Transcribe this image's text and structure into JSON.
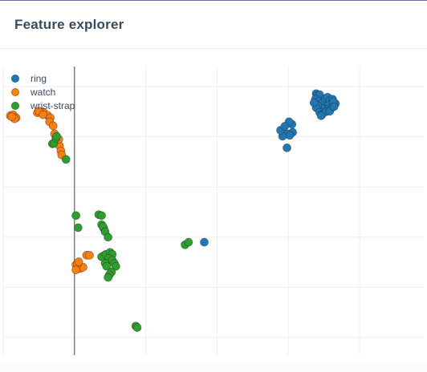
{
  "card": {
    "title": "Feature explorer"
  },
  "chart_data": {
    "type": "scatter",
    "title": "Feature explorer",
    "xlabel": "",
    "ylabel": "",
    "xlim": [
      -1.0,
      4.9
    ],
    "ylim": [
      -0.35,
      5.4
    ],
    "grid": true,
    "legend_position": "top-left",
    "series": [
      {
        "name": "ring",
        "color": "#1f77b4",
        "points": [
          [
            3.39,
            4.86
          ],
          [
            3.41,
            4.82
          ],
          [
            3.44,
            4.84
          ],
          [
            3.38,
            4.75
          ],
          [
            3.43,
            4.71
          ],
          [
            3.48,
            4.68
          ],
          [
            3.52,
            4.76
          ],
          [
            3.55,
            4.79
          ],
          [
            3.58,
            4.72
          ],
          [
            3.62,
            4.75
          ],
          [
            3.56,
            4.62
          ],
          [
            3.61,
            4.58
          ],
          [
            3.66,
            4.66
          ],
          [
            3.63,
            4.7
          ],
          [
            3.52,
            4.55
          ],
          [
            3.47,
            4.57
          ],
          [
            3.41,
            4.62
          ],
          [
            3.39,
            4.58
          ],
          [
            3.44,
            4.49
          ],
          [
            3.47,
            4.44
          ],
          [
            3.53,
            4.5
          ],
          [
            3.58,
            4.51
          ],
          [
            3.64,
            4.6
          ],
          [
            3.46,
            4.42
          ],
          [
            3.36,
            4.68
          ],
          [
            3.05,
            4.25
          ],
          [
            3.01,
            4.3
          ],
          [
            3.06,
            4.09
          ],
          [
            2.98,
            4.06
          ],
          [
            3.02,
            4.03
          ],
          [
            2.92,
            4.01
          ],
          [
            2.89,
            4.13
          ],
          [
            2.95,
            4.21
          ],
          [
            2.98,
            3.78
          ],
          [
            1.82,
            1.9
          ]
        ]
      },
      {
        "name": "watch",
        "color": "#ff7f0e",
        "points": [
          [
            -0.9,
            4.42
          ],
          [
            -0.86,
            4.44
          ],
          [
            -0.82,
            4.38
          ],
          [
            -0.84,
            4.36
          ],
          [
            -0.88,
            4.4
          ],
          [
            -0.52,
            4.48
          ],
          [
            -0.47,
            4.5
          ],
          [
            -0.43,
            4.48
          ],
          [
            -0.38,
            4.43
          ],
          [
            -0.34,
            4.38
          ],
          [
            -0.5,
            4.51
          ],
          [
            -0.44,
            4.44
          ],
          [
            -0.35,
            4.3
          ],
          [
            -0.3,
            4.22
          ],
          [
            -0.28,
            4.06
          ],
          [
            -0.26,
            3.96
          ],
          [
            -0.21,
            3.82
          ],
          [
            -0.19,
            3.72
          ],
          [
            -0.18,
            3.64
          ],
          [
            -0.22,
            3.95
          ],
          [
            0.02,
            1.45
          ],
          [
            0.06,
            1.41
          ],
          [
            0.08,
            1.38
          ],
          [
            0.12,
            1.4
          ],
          [
            0.04,
            1.47
          ],
          [
            0.02,
            1.35
          ],
          [
            0.06,
            1.51
          ],
          [
            0.17,
            1.64
          ],
          [
            0.21,
            1.64
          ]
        ]
      },
      {
        "name": "wrist-strap",
        "color": "#2ca02c",
        "points": [
          [
            -0.31,
            3.86
          ],
          [
            -0.29,
            3.87
          ],
          [
            -0.26,
            3.97
          ],
          [
            -0.25,
            4.01
          ],
          [
            -0.12,
            3.55
          ],
          [
            0.02,
            2.43
          ],
          [
            0.05,
            2.19
          ],
          [
            0.34,
            2.45
          ],
          [
            0.38,
            2.43
          ],
          [
            0.38,
            2.25
          ],
          [
            0.41,
            2.18
          ],
          [
            0.4,
            2.21
          ],
          [
            0.43,
            2.11
          ],
          [
            0.47,
            2.0
          ],
          [
            0.41,
            1.63
          ],
          [
            0.38,
            1.61
          ],
          [
            0.44,
            1.66
          ],
          [
            0.5,
            1.7
          ],
          [
            0.53,
            1.66
          ],
          [
            0.48,
            1.58
          ],
          [
            0.53,
            1.54
          ],
          [
            0.43,
            1.48
          ],
          [
            0.45,
            1.42
          ],
          [
            0.56,
            1.48
          ],
          [
            0.58,
            1.42
          ],
          [
            0.52,
            1.31
          ],
          [
            0.49,
            1.25
          ],
          [
            0.47,
            1.2
          ],
          [
            0.86,
            0.23
          ],
          [
            0.88,
            0.2
          ],
          [
            1.55,
            1.85
          ],
          [
            1.6,
            1.9
          ]
        ]
      }
    ]
  }
}
